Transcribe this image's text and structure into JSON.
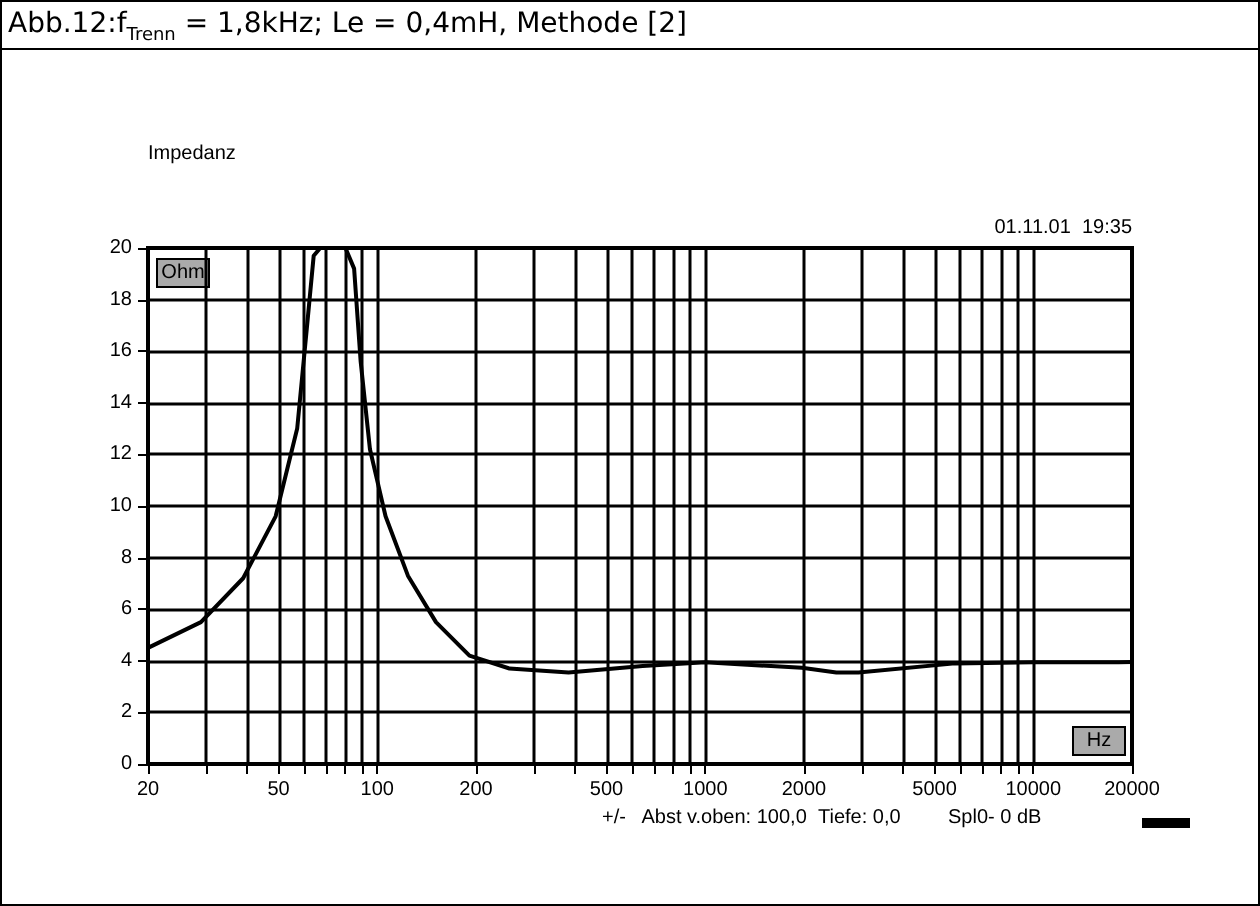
{
  "chart_data": {
    "type": "line",
    "title": "Abb.12:f$_{Trenn}$ = 1,8kHz; Le = 0,4mH, Methode [2]",
    "subtitle": "Impedanz",
    "ylabel": "Ohm",
    "xlabel": "Hz",
    "annotations": [
      "01.11.01  19:35",
      "+/-   Abst v.oben: 100,0",
      "Tiefe: 0,0",
      "Spl0- 0 dB"
    ],
    "log": "x",
    "grid": true,
    "marker": "none",
    "line_style": "solid",
    "xlim": [
      20,
      20000
    ],
    "ylim": [
      0,
      20
    ],
    "xticks": [
      20,
      {
        "value": 30,
        "label": null
      },
      {
        "value": 40,
        "label": null
      },
      50,
      {
        "value": 60,
        "label": null
      },
      {
        "value": 70,
        "label": null
      },
      {
        "value": 80,
        "label": null
      },
      {
        "value": 90,
        "label": null
      },
      100,
      200,
      {
        "value": 300,
        "label": null
      },
      {
        "value": 400,
        "label": null
      },
      500,
      {
        "value": 600,
        "label": null
      },
      {
        "value": 700,
        "label": null
      },
      {
        "value": 800,
        "label": null
      },
      {
        "value": 900,
        "label": null
      },
      1000,
      2000,
      {
        "value": 3000,
        "label": null
      },
      {
        "value": 4000,
        "label": null
      },
      5000,
      {
        "value": 6000,
        "label": null
      },
      {
        "value": 7000,
        "label": null
      },
      {
        "value": 8000,
        "label": null
      },
      {
        "value": 9000,
        "label": null
      },
      10000,
      20000
    ],
    "yticks": [
      0,
      2,
      4,
      6,
      8,
      10,
      12,
      14,
      16,
      18,
      20
    ],
    "series": [
      {
        "color": "#000000",
        "x": [
          20,
          29,
          39,
          49,
          57,
          61,
          64,
          67,
          72,
          76,
          80,
          85,
          89,
          95,
          106,
          124,
          151,
          191,
          253,
          383,
          644,
          1000,
          1970,
          2510,
          2930,
          5770,
          10000,
          18200,
          20000
        ],
        "values": [
          4.5,
          5.5,
          7.2,
          9.6,
          13,
          16.9,
          19.7,
          20,
          20,
          20,
          20,
          19.2,
          15.6,
          12.2,
          9.6,
          7.3,
          5.5,
          4.2,
          3.7,
          3.55,
          3.8,
          3.94,
          3.73,
          3.55,
          3.55,
          3.9,
          3.94,
          3.94,
          3.95
        ]
      }
    ]
  }
}
